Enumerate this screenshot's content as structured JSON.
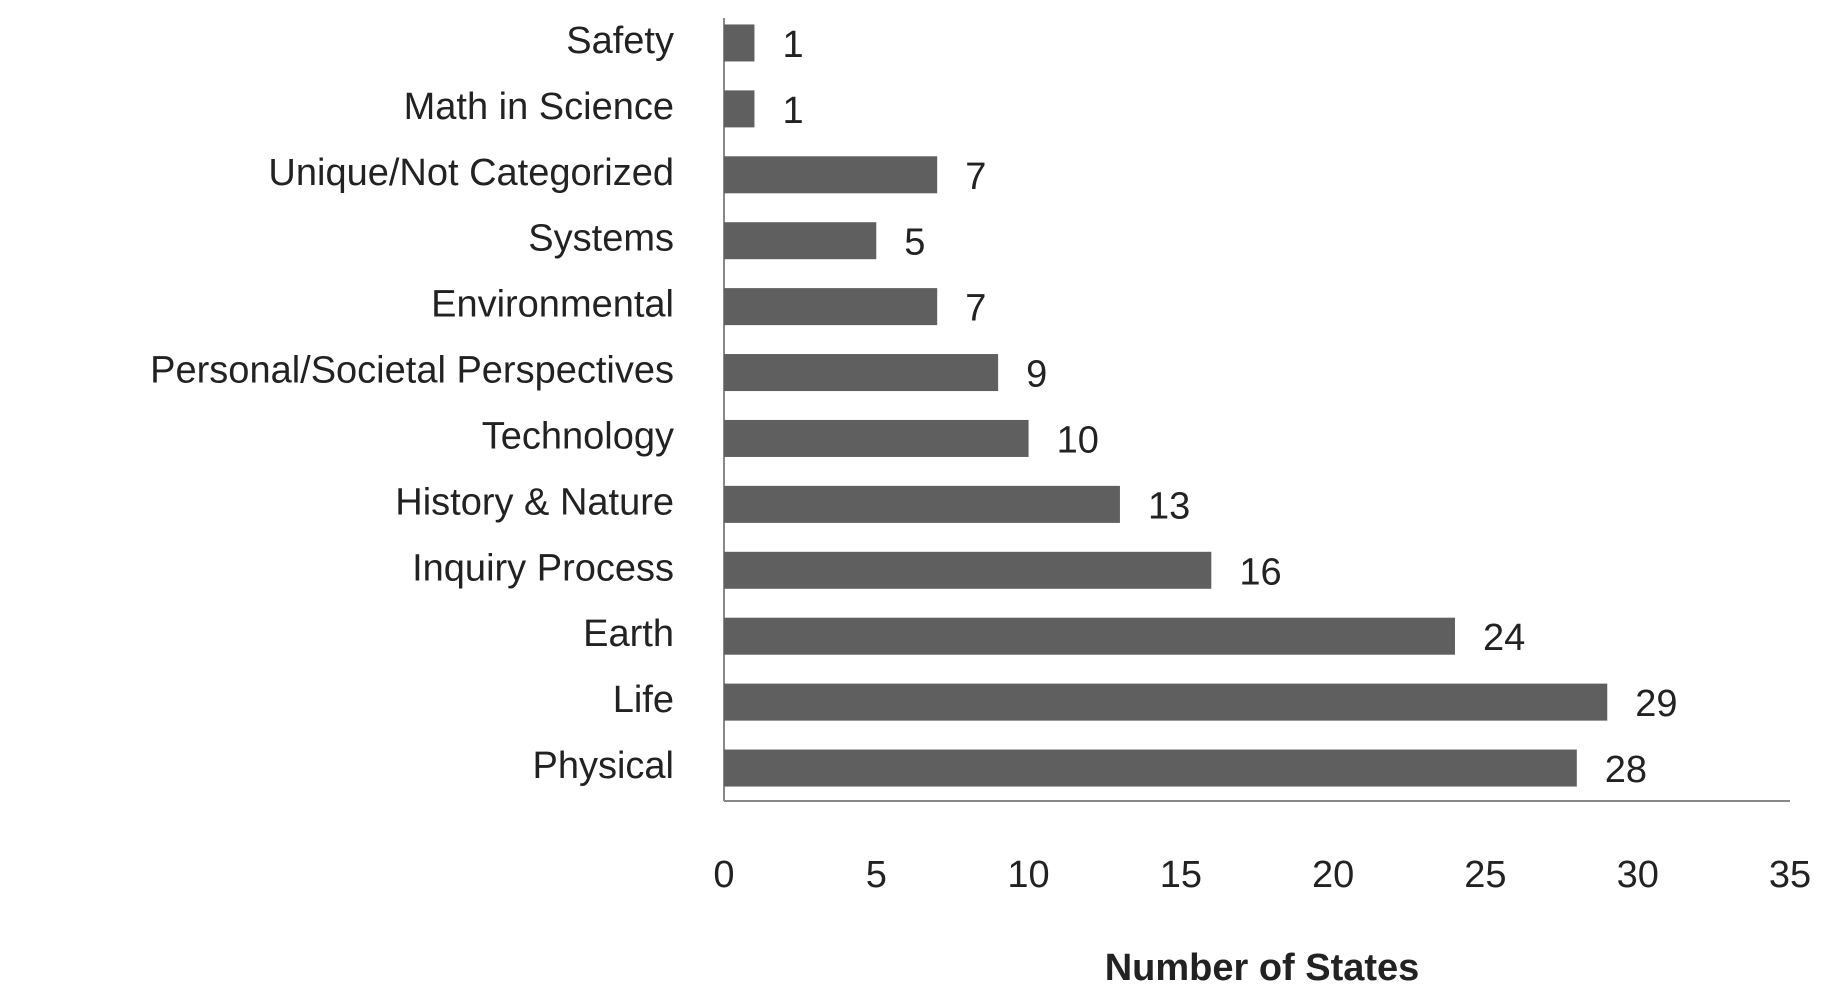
{
  "chart_data": {
    "type": "barh",
    "categories": [
      "Safety",
      "Math in Science",
      "Unique/Not Categorized",
      "Systems",
      "Environmental",
      "Personal/Societal Perspectives",
      "Technology",
      "History & Nature",
      "Inquiry Process",
      "Earth",
      "Life",
      "Physical"
    ],
    "values": [
      1,
      1,
      7,
      5,
      7,
      9,
      10,
      13,
      16,
      24,
      29,
      28
    ],
    "color": "#5f5f5f",
    "x_label": "Number of States",
    "xlim": [
      0,
      35
    ],
    "xticks": [
      0,
      5,
      10,
      15,
      20,
      25,
      30,
      35
    ],
    "grid": false
  }
}
